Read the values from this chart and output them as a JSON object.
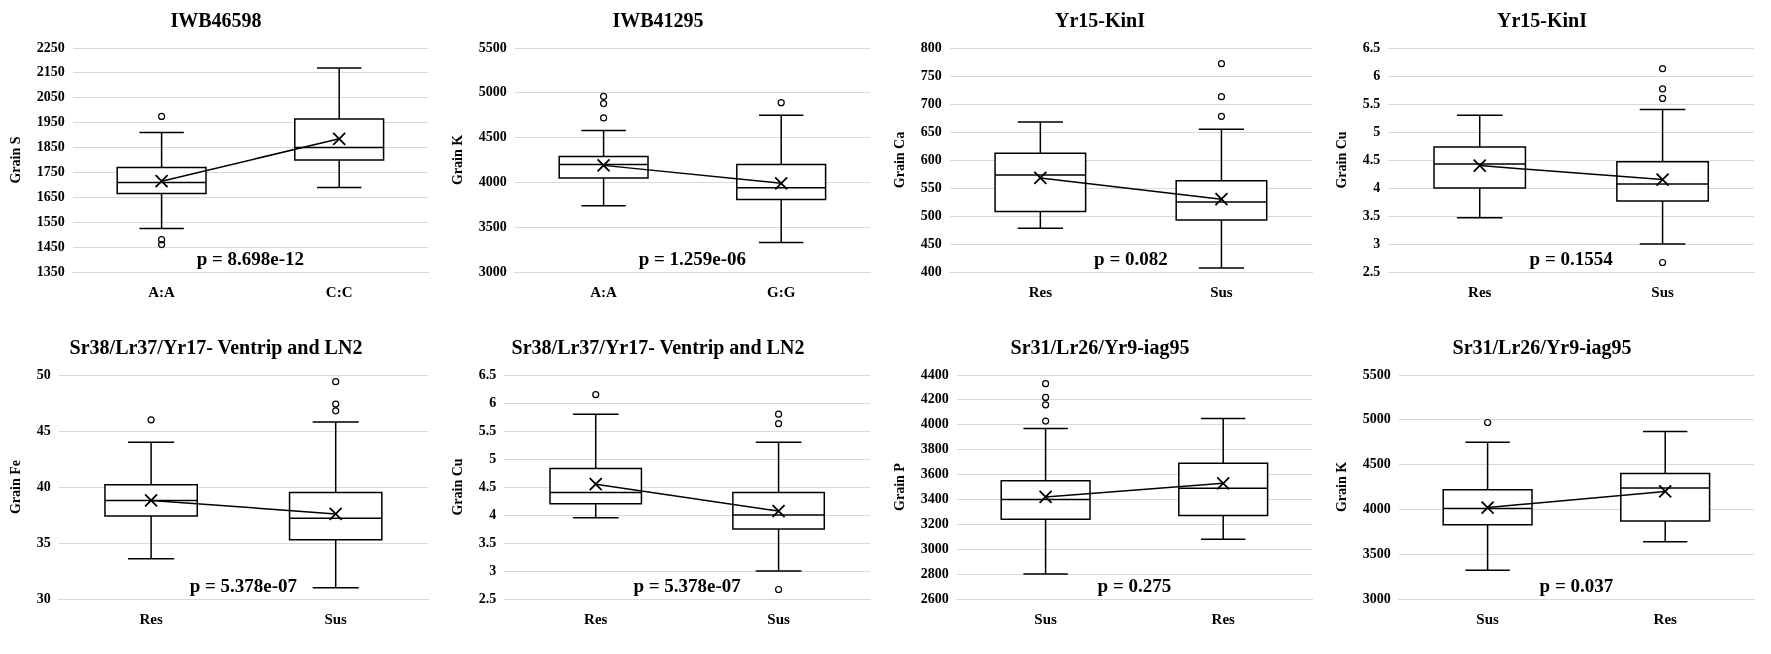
{
  "chart_data": [
    {
      "type": "box",
      "title": "IWB46598",
      "ylabel": "Grain S",
      "categories": [
        "A:A",
        "C:C"
      ],
      "ylim": [
        1350,
        2250
      ],
      "yticks": [
        1350,
        1450,
        1550,
        1650,
        1750,
        1850,
        1950,
        2050,
        2150,
        2250
      ],
      "grid": "y",
      "annotations": [
        "p = 8.698e-12"
      ],
      "boxes": [
        {
          "low": 1525,
          "q1": 1665,
          "median": 1710,
          "q3": 1770,
          "high": 1910,
          "mean": 1715,
          "outliers": [
            1975,
            1480,
            1460
          ]
        },
        {
          "low": 1690,
          "q1": 1800,
          "median": 1850,
          "q3": 1965,
          "high": 2170,
          "mean": 1885
        }
      ],
      "series": [
        {
          "type": "line",
          "color": "#000000",
          "values": [
            1715,
            1885
          ]
        }
      ]
    },
    {
      "type": "box",
      "title": "IWB41295",
      "ylabel": "Grain K",
      "categories": [
        "A:A",
        "G:G"
      ],
      "ylim": [
        3000,
        5500
      ],
      "yticks": [
        3000,
        3500,
        4000,
        4500,
        5000,
        5500
      ],
      "grid": "y",
      "annotations": [
        "p = 1.259e-06"
      ],
      "boxes": [
        {
          "low": 3740,
          "q1": 4050,
          "median": 4200,
          "q3": 4290,
          "high": 4580,
          "mean": 4190,
          "outliers": [
            4720,
            4880,
            4960
          ]
        },
        {
          "low": 3330,
          "q1": 3810,
          "median": 3940,
          "q3": 4200,
          "high": 4750,
          "mean": 3990,
          "outliers": [
            4890
          ]
        }
      ],
      "series": [
        {
          "type": "line",
          "color": "#000000",
          "values": [
            4190,
            3990
          ]
        }
      ]
    },
    {
      "type": "box",
      "title": "Yr15-KinI",
      "ylabel": "Grain Ca",
      "categories": [
        "Res",
        "Sus"
      ],
      "ylim": [
        400,
        800
      ],
      "yticks": [
        400,
        450,
        500,
        550,
        600,
        650,
        700,
        750,
        800
      ],
      "grid": "y",
      "annotations": [
        "p = 0.082"
      ],
      "boxes": [
        {
          "low": 478,
          "q1": 508,
          "median": 573,
          "q3": 612,
          "high": 668,
          "mean": 568
        },
        {
          "low": 407,
          "q1": 493,
          "median": 525,
          "q3": 563,
          "high": 655,
          "mean": 530,
          "outliers": [
            678,
            713,
            772
          ]
        }
      ],
      "series": [
        {
          "type": "line",
          "color": "#000000",
          "values": [
            568,
            530
          ]
        }
      ]
    },
    {
      "type": "box",
      "title": "Yr15-KinI",
      "ylabel": "Grain Cu",
      "categories": [
        "Res",
        "Sus"
      ],
      "ylim": [
        2.5,
        6.5
      ],
      "yticks": [
        2.5,
        3,
        3.5,
        4,
        4.5,
        5,
        5.5,
        6,
        6.5
      ],
      "grid": "y",
      "annotations": [
        "p = 0.1554"
      ],
      "boxes": [
        {
          "low": 3.47,
          "q1": 4.0,
          "median": 4.43,
          "q3": 4.73,
          "high": 5.3,
          "mean": 4.4
        },
        {
          "low": 3.0,
          "q1": 3.77,
          "median": 4.07,
          "q3": 4.47,
          "high": 5.4,
          "mean": 4.15,
          "outliers": [
            2.67,
            5.6,
            5.77,
            6.13
          ]
        }
      ],
      "series": [
        {
          "type": "line",
          "color": "#000000",
          "values": [
            4.4,
            4.15
          ]
        }
      ]
    },
    {
      "type": "box",
      "title": "Sr38/Lr37/Yr17- Ventrip and LN2",
      "ylabel": "Grain Fe",
      "categories": [
        "Res",
        "Sus"
      ],
      "ylim": [
        30,
        50
      ],
      "yticks": [
        30,
        35,
        40,
        45,
        50
      ],
      "grid": "y",
      "annotations": [
        "p = 5.378e-07"
      ],
      "boxes": [
        {
          "low": 33.6,
          "q1": 37.4,
          "median": 38.8,
          "q3": 40.2,
          "high": 44.0,
          "mean": 38.8,
          "outliers": [
            46.0
          ]
        },
        {
          "low": 31.0,
          "q1": 35.3,
          "median": 37.2,
          "q3": 39.5,
          "high": 45.8,
          "mean": 37.6,
          "outliers": [
            46.8,
            47.4,
            49.4
          ]
        }
      ],
      "series": [
        {
          "type": "line",
          "color": "#000000",
          "values": [
            38.8,
            37.6
          ]
        }
      ]
    },
    {
      "type": "box",
      "title": "Sr38/Lr37/Yr17- Ventrip and LN2",
      "ylabel": "Grain Cu",
      "categories": [
        "Res",
        "Sus"
      ],
      "ylim": [
        2.5,
        6.5
      ],
      "yticks": [
        2.5,
        3,
        3.5,
        4,
        4.5,
        5,
        5.5,
        6,
        6.5
      ],
      "grid": "y",
      "annotations": [
        "p = 5.378e-07"
      ],
      "boxes": [
        {
          "low": 3.95,
          "q1": 4.2,
          "median": 4.4,
          "q3": 4.83,
          "high": 5.8,
          "mean": 4.55,
          "outliers": [
            6.15
          ]
        },
        {
          "low": 3.0,
          "q1": 3.75,
          "median": 4.0,
          "q3": 4.4,
          "high": 5.3,
          "mean": 4.07,
          "outliers": [
            2.67,
            5.63,
            5.8
          ]
        }
      ],
      "series": [
        {
          "type": "line",
          "color": "#000000",
          "values": [
            4.55,
            4.07
          ]
        }
      ]
    },
    {
      "type": "box",
      "title": "Sr31/Lr26/Yr9-iag95",
      "ylabel": "Grain P",
      "categories": [
        "Sus",
        "Res"
      ],
      "ylim": [
        2600,
        4400
      ],
      "yticks": [
        2600,
        2800,
        3000,
        3200,
        3400,
        3600,
        3800,
        4000,
        4200,
        4400
      ],
      "grid": "y",
      "annotations": [
        "p = 0.275"
      ],
      "boxes": [
        {
          "low": 2800,
          "q1": 3240,
          "median": 3400,
          "q3": 3550,
          "high": 3970,
          "mean": 3420,
          "outliers": [
            4030,
            4160,
            4220,
            4330
          ]
        },
        {
          "low": 3080,
          "q1": 3270,
          "median": 3490,
          "q3": 3690,
          "high": 4050,
          "mean": 3530
        }
      ],
      "series": [
        {
          "type": "line",
          "color": "#000000",
          "values": [
            3420,
            3530
          ]
        }
      ]
    },
    {
      "type": "box",
      "title": "Sr31/Lr26/Yr9-iag95",
      "ylabel": "Grain K",
      "categories": [
        "Sus",
        "Res"
      ],
      "ylim": [
        3000,
        5500
      ],
      "yticks": [
        3000,
        3500,
        4000,
        4500,
        5000,
        5500
      ],
      "grid": "y",
      "annotations": [
        "p = 0.037"
      ],
      "boxes": [
        {
          "low": 3320,
          "q1": 3830,
          "median": 4010,
          "q3": 4220,
          "high": 4750,
          "mean": 4020,
          "outliers": [
            4970
          ]
        },
        {
          "low": 3640,
          "q1": 3870,
          "median": 4240,
          "q3": 4400,
          "high": 4870,
          "mean": 4200
        }
      ],
      "series": [
        {
          "type": "line",
          "color": "#000000",
          "values": [
            4020,
            4200
          ]
        }
      ]
    }
  ]
}
